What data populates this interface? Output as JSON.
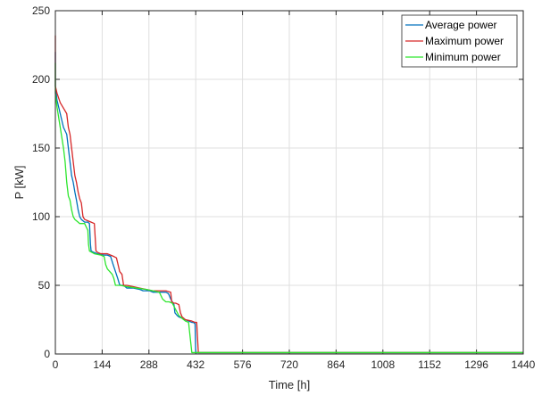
{
  "chart_data": {
    "type": "line",
    "xlabel": "Time [h]",
    "ylabel": "P [kW]",
    "xlim": [
      0,
      1440
    ],
    "ylim": [
      0,
      250
    ],
    "xticks": [
      0,
      144,
      288,
      432,
      576,
      720,
      864,
      1008,
      1152,
      1296,
      1440
    ],
    "yticks": [
      0,
      50,
      100,
      150,
      200,
      250
    ],
    "grid": true,
    "legend_position": "top-right",
    "series": [
      {
        "name": "Average power",
        "color": "#0072bd",
        "x": [
          0,
          0,
          5,
          15,
          25,
          35,
          40,
          45,
          50,
          55,
          60,
          65,
          70,
          75,
          80,
          85,
          90,
          100,
          105,
          108,
          110,
          118,
          130,
          150,
          160,
          170,
          178,
          185,
          192,
          197,
          200,
          205,
          210,
          220,
          240,
          260,
          270,
          290,
          300,
          320,
          340,
          348,
          355,
          365,
          368,
          375,
          380,
          390,
          395,
          400,
          410,
          420,
          425,
          430,
          432,
          1440
        ],
        "y": [
          220,
          195,
          185,
          175,
          165,
          160,
          150,
          140,
          130,
          125,
          118,
          112,
          105,
          100,
          98,
          97,
          96,
          96,
          95,
          80,
          75,
          74,
          73,
          72,
          72,
          71,
          65,
          60,
          55,
          51,
          50,
          50,
          50,
          48,
          48,
          47,
          46,
          46,
          45,
          45,
          45,
          44,
          40,
          36,
          30,
          28,
          27,
          26,
          25,
          25,
          24,
          23,
          23,
          22,
          1,
          1
        ]
      },
      {
        "name": "Maximum power",
        "color": "#d62728",
        "x": [
          0,
          0,
          5,
          15,
          25,
          35,
          40,
          45,
          50,
          55,
          60,
          65,
          70,
          75,
          80,
          85,
          90,
          100,
          110,
          120,
          125,
          130,
          140,
          160,
          170,
          180,
          188,
          193,
          198,
          205,
          210,
          220,
          240,
          260,
          280,
          300,
          340,
          355,
          358,
          365,
          370,
          380,
          385,
          390,
          400,
          420,
          430,
          435,
          440,
          1440
        ],
        "y": [
          232,
          195,
          190,
          183,
          179,
          175,
          165,
          160,
          150,
          140,
          130,
          125,
          118,
          113,
          110,
          100,
          98,
          97,
          96,
          95,
          75,
          74,
          73,
          73,
          72,
          71,
          70,
          65,
          60,
          58,
          50,
          50,
          49,
          48,
          47,
          46,
          46,
          45,
          38,
          37,
          37,
          36,
          30,
          27,
          25,
          24,
          23,
          23,
          1,
          1
        ]
      },
      {
        "name": "Minimum power",
        "color": "#2ee62e",
        "x": [
          0,
          0,
          5,
          15,
          25,
          30,
          35,
          40,
          45,
          50,
          55,
          60,
          65,
          70,
          75,
          85,
          90,
          100,
          102,
          105,
          120,
          140,
          150,
          155,
          160,
          175,
          180,
          185,
          200,
          220,
          250,
          280,
          300,
          320,
          330,
          340,
          350,
          360,
          380,
          400,
          410,
          420,
          1440
        ],
        "y": [
          212,
          190,
          180,
          165,
          150,
          140,
          125,
          115,
          112,
          105,
          100,
          98,
          97,
          96,
          95,
          95,
          95,
          90,
          80,
          75,
          73,
          72,
          71,
          65,
          62,
          58,
          55,
          50,
          50,
          49,
          48,
          47,
          46,
          45,
          40,
          38,
          38,
          37,
          28,
          24,
          23,
          1,
          1
        ]
      }
    ]
  }
}
